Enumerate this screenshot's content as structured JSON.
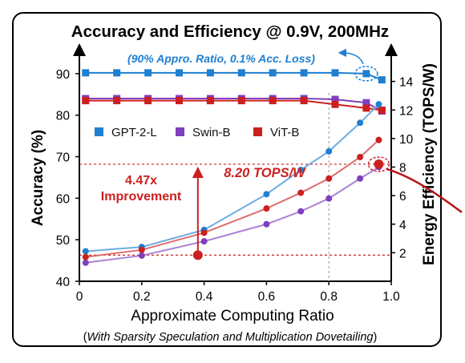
{
  "chart_data": {
    "type": "line",
    "title": "Accuracy and Efficiency @ 0.9V, 200MHz",
    "xlabel": "Approximate Computing Ratio",
    "x_note_open": "(",
    "x_note_italic": "With Sparsity Speculation and Multiplication Dovetailing",
    "x_note_close": ")",
    "ylabel_left": "Accuracy (%)",
    "ylabel_right": "Energy Efficiency (TOPS/W)",
    "xlim": [
      0,
      1.0
    ],
    "ylim_left": [
      40,
      95
    ],
    "ylim_right": [
      0,
      16
    ],
    "x_ticks": [
      "0",
      "0.2",
      "0.4",
      "0.6",
      "0.8",
      "1.0"
    ],
    "y_left_ticks": [
      "40",
      "50",
      "60",
      "70",
      "80",
      "90"
    ],
    "y_right_ticks": [
      "2",
      "4",
      "6",
      "8",
      "10",
      "12",
      "14"
    ],
    "accuracy_series": [
      {
        "name": "GPT-2-L",
        "color": "#1f7fd0",
        "x": [
          0.02,
          0.12,
          0.22,
          0.32,
          0.42,
          0.52,
          0.62,
          0.72,
          0.82,
          0.92,
          0.97
        ],
        "values": [
          90.2,
          90.2,
          90.2,
          90.2,
          90.2,
          90.2,
          90.2,
          90.2,
          90.2,
          90.0,
          88.5
        ]
      },
      {
        "name": "Swin-B",
        "color": "#7f3fbf",
        "x": [
          0.02,
          0.12,
          0.22,
          0.32,
          0.42,
          0.52,
          0.62,
          0.72,
          0.82,
          0.92,
          0.97
        ],
        "values": [
          84.0,
          84.0,
          84.0,
          84.0,
          84.0,
          84.0,
          84.0,
          84.0,
          83.8,
          83.0,
          81.0
        ]
      },
      {
        "name": "ViT-B",
        "color": "#cc1f1f",
        "x": [
          0.02,
          0.12,
          0.22,
          0.32,
          0.42,
          0.52,
          0.62,
          0.72,
          0.82,
          0.92,
          0.97
        ],
        "values": [
          83.5,
          83.5,
          83.5,
          83.5,
          83.5,
          83.5,
          83.5,
          83.5,
          82.6,
          81.7,
          81.2
        ]
      }
    ],
    "efficiency_series": [
      {
        "name": "GPT-2-L",
        "color": "#1f7fd0",
        "x": [
          0.02,
          0.2,
          0.4,
          0.6,
          0.71,
          0.8,
          0.9,
          0.96
        ],
        "values": [
          2.1,
          2.4,
          3.6,
          6.1,
          7.8,
          9.1,
          11.1,
          12.4
        ]
      },
      {
        "name": "Swin-B",
        "color": "#7f3fbf",
        "x": [
          0.02,
          0.2,
          0.4,
          0.6,
          0.71,
          0.8,
          0.9,
          0.96
        ],
        "values": [
          1.3,
          1.8,
          2.8,
          4.0,
          4.9,
          5.8,
          7.2,
          8.0
        ]
      },
      {
        "name": "ViT-B",
        "color": "#cc1f1f",
        "x": [
          0.02,
          0.2,
          0.4,
          0.6,
          0.71,
          0.8,
          0.9,
          0.96
        ],
        "values": [
          1.7,
          2.2,
          3.4,
          5.1,
          6.2,
          7.2,
          8.7,
          9.9
        ]
      }
    ],
    "annotations": {
      "approx_note": "(90% Appro. Ratio, 0.1% Acc. Loss)",
      "peak_efficiency": "8.20 TOPS/W",
      "improvement_value": "4.47x",
      "improvement_word": "Improvement",
      "marker_baseline": {
        "x": 0.38,
        "value": 1.83
      },
      "marker_peak": {
        "x": 0.96,
        "value": 8.2
      },
      "reference_x": 0.8
    },
    "legend": {
      "placement": "upper-middle",
      "entries": [
        "GPT-2-L",
        "Swin-B",
        "ViT-B"
      ]
    },
    "grid": false
  }
}
